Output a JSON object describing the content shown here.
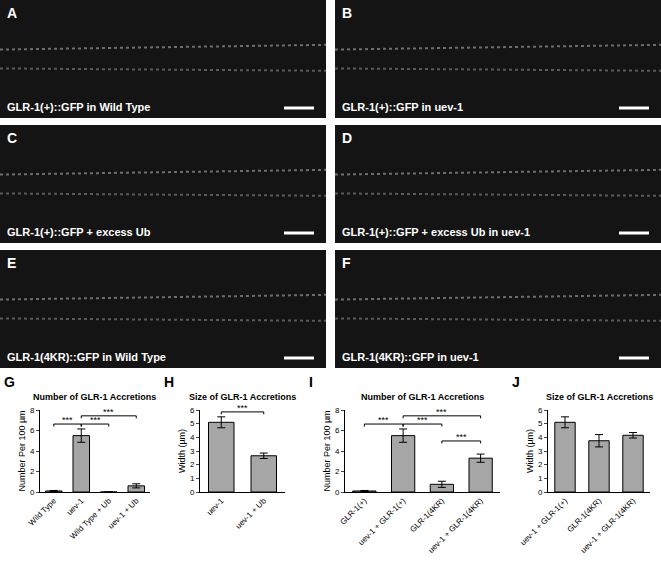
{
  "image_panels": [
    {
      "panel": "A",
      "caption": "GLR-1(+)::GFP in Wild Type"
    },
    {
      "panel": "B",
      "caption": "GLR-1(+)::GFP in uev-1"
    },
    {
      "panel": "C",
      "caption": "GLR-1(+)::GFP + excess Ub"
    },
    {
      "panel": "D",
      "caption": "GLR-1(+)::GFP + excess Ub in uev-1"
    },
    {
      "panel": "E",
      "caption": "GLR-1(4KR)::GFP in Wild Type"
    },
    {
      "panel": "F",
      "caption": "GLR-1(4KR)::GFP in uev-1"
    }
  ],
  "chart_data": [
    {
      "panel": "G",
      "type": "bar",
      "title": "Number of GLR-1 Accretions",
      "y_label": "Number Per 100 µm",
      "categories": [
        "Wild Type",
        "uev-1",
        "Wild Type + Ub",
        "uev-1 + Ub"
      ],
      "values": [
        0.1,
        5.5,
        0,
        0.6
      ],
      "errors": [
        0.05,
        0.65,
        0,
        0.2
      ],
      "color": "#a6a6a6",
      "ylim": [
        0,
        8
      ],
      "yticks": [
        0,
        2,
        4,
        6,
        8
      ],
      "significance": [
        {
          "from": 0,
          "to": 1,
          "label": "***"
        },
        {
          "from": 1,
          "to": 2,
          "label": "***"
        },
        {
          "from": 1,
          "to": 3,
          "label": "***"
        }
      ]
    },
    {
      "panel": "H",
      "type": "bar",
      "title": "Size of GLR-1 Accretions",
      "y_label": "Width (µm)",
      "categories": [
        "uev-1",
        "uev-1 + Ub"
      ],
      "values": [
        5.1,
        2.65
      ],
      "errors": [
        0.4,
        0.2
      ],
      "color": "#a6a6a6",
      "ylim": [
        0,
        6
      ],
      "yticks": [
        0,
        1,
        2,
        3,
        4,
        5,
        6
      ],
      "significance": [
        {
          "from": 0,
          "to": 1,
          "label": "***"
        }
      ]
    },
    {
      "panel": "I",
      "type": "bar",
      "title": "Number of GLR-1 Accretions",
      "y_label": "Number Per 100 µm",
      "categories": [
        "GLR-1(+)",
        "uev-1 + GLR-1(+)",
        "GLR-1(4KR)",
        "uev-1 + GLR-1(4KR)"
      ],
      "values": [
        0.1,
        5.5,
        0.75,
        3.3
      ],
      "errors": [
        0.05,
        0.65,
        0.3,
        0.4
      ],
      "color": "#a6a6a6",
      "ylim": [
        0,
        8
      ],
      "yticks": [
        0,
        2,
        4,
        6,
        8
      ],
      "significance": [
        {
          "from": 0,
          "to": 1,
          "label": "***"
        },
        {
          "from": 1,
          "to": 2,
          "label": "***"
        },
        {
          "from": 1,
          "to": 3,
          "label": "***"
        },
        {
          "from": 2,
          "to": 3,
          "label": "***"
        }
      ]
    },
    {
      "panel": "J",
      "type": "bar",
      "title": "Size of GLR-1 Accretions",
      "y_label": "Width (µm)",
      "categories": [
        "uev-1 + GLR-1(+)",
        "GLR-1(4KR)",
        "uev-1 + GLR-1(4KR)"
      ],
      "values": [
        5.1,
        3.75,
        4.15
      ],
      "errors": [
        0.4,
        0.45,
        0.2
      ],
      "color": "#a6a6a6",
      "ylim": [
        0,
        6
      ],
      "yticks": [
        0,
        1,
        2,
        3,
        4,
        5,
        6
      ],
      "significance": []
    }
  ]
}
